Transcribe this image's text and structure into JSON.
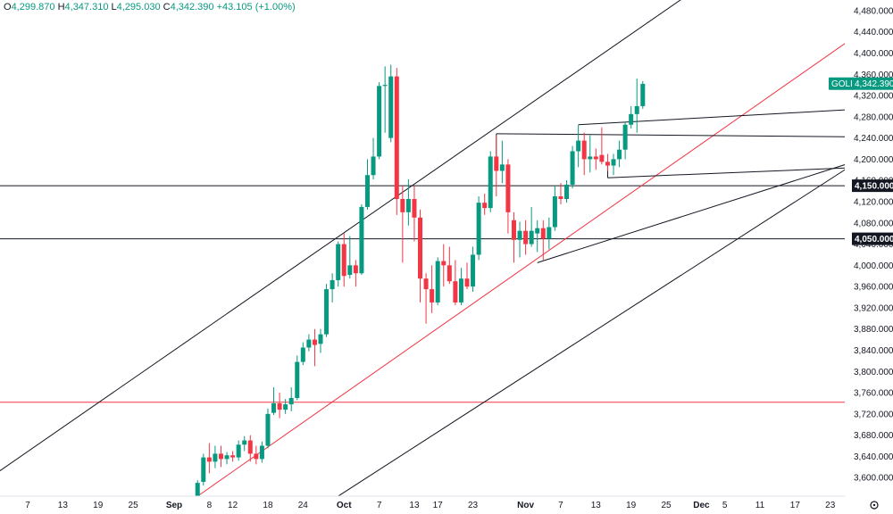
{
  "header": {
    "open_label": "O",
    "open": "4,299.870",
    "high_label": "H",
    "high": "4,347.310",
    "low_label": "L",
    "low": "4,295.030",
    "close_label": "C",
    "close": "4,342.390",
    "change": "+43.105 (+1.00%)"
  },
  "symbol_tag": {
    "name": "GOLD",
    "price": "4,342.390"
  },
  "colors": {
    "up": "#089981",
    "down": "#f23645",
    "line": "#131722",
    "red_line": "#f23645"
  },
  "chart_data": {
    "type": "candlestick",
    "symbol": "GOLD",
    "y_range": [
      3565,
      4500
    ],
    "y_ticks": [
      3600,
      3640,
      3680,
      3720,
      3760,
      3800,
      3840,
      3880,
      3920,
      3960,
      4000,
      4040,
      4080,
      4120,
      4160,
      4200,
      4240,
      4280,
      4320,
      4360,
      4400,
      4440,
      4480
    ],
    "y_tick_labels": [
      "3,600.000",
      "3,640.000",
      "3,680.000",
      "3,720.000",
      "3,760.000",
      "3,800.000",
      "3,840.000",
      "3,880.000",
      "3,920.000",
      "3,960.000",
      "4,000.000",
      "4,040.000",
      "4,080.000",
      "4,120.000",
      "4,160.000",
      "4,200.000",
      "4,240.000",
      "4,280.000",
      "4,320.000",
      "4,360.000",
      "4,400.000",
      "4,440.000",
      "4,480.000"
    ],
    "x_ticks": [
      {
        "label": "7",
        "day": 7
      },
      {
        "label": "13",
        "day": 13
      },
      {
        "label": "19",
        "day": 19
      },
      {
        "label": "25",
        "day": 25
      },
      {
        "label": "Sep",
        "day": 32,
        "month": true
      },
      {
        "label": "8",
        "day": 38
      },
      {
        "label": "12",
        "day": 42
      },
      {
        "label": "18",
        "day": 48
      },
      {
        "label": "24",
        "day": 54
      },
      {
        "label": "Oct",
        "day": 61,
        "month": true
      },
      {
        "label": "7",
        "day": 67
      },
      {
        "label": "13",
        "day": 73
      },
      {
        "label": "17",
        "day": 77
      },
      {
        "label": "23",
        "day": 83
      },
      {
        "label": "Nov",
        "day": 92,
        "month": true
      },
      {
        "label": "7",
        "day": 98
      },
      {
        "label": "13",
        "day": 104
      },
      {
        "label": "19",
        "day": 110
      },
      {
        "label": "25",
        "day": 116
      },
      {
        "label": "Dec",
        "day": 122,
        "month": true
      },
      {
        "label": "5",
        "day": 126
      },
      {
        "label": "11",
        "day": 132
      },
      {
        "label": "17",
        "day": 138
      },
      {
        "label": "23",
        "day": 144
      }
    ],
    "candles": [
      {
        "day": 36,
        "o": 3560,
        "h": 3595,
        "l": 3560,
        "c": 3590
      },
      {
        "day": 37,
        "o": 3592,
        "h": 3645,
        "l": 3585,
        "c": 3638
      },
      {
        "day": 38,
        "o": 3638,
        "h": 3665,
        "l": 3608,
        "c": 3630
      },
      {
        "day": 39,
        "o": 3630,
        "h": 3660,
        "l": 3618,
        "c": 3645
      },
      {
        "day": 40,
        "o": 3645,
        "h": 3660,
        "l": 3620,
        "c": 3635
      },
      {
        "day": 41,
        "o": 3635,
        "h": 3648,
        "l": 3625,
        "c": 3642
      },
      {
        "day": 42,
        "o": 3642,
        "h": 3650,
        "l": 3630,
        "c": 3638
      },
      {
        "day": 43,
        "o": 3638,
        "h": 3670,
        "l": 3632,
        "c": 3662
      },
      {
        "day": 44,
        "o": 3662,
        "h": 3678,
        "l": 3650,
        "c": 3670
      },
      {
        "day": 45,
        "o": 3670,
        "h": 3680,
        "l": 3630,
        "c": 3645
      },
      {
        "day": 46,
        "o": 3645,
        "h": 3660,
        "l": 3625,
        "c": 3635
      },
      {
        "day": 47,
        "o": 3635,
        "h": 3668,
        "l": 3628,
        "c": 3660
      },
      {
        "day": 48,
        "o": 3660,
        "h": 3730,
        "l": 3655,
        "c": 3720
      },
      {
        "day": 49,
        "o": 3722,
        "h": 3770,
        "l": 3718,
        "c": 3740
      },
      {
        "day": 50,
        "o": 3740,
        "h": 3760,
        "l": 3712,
        "c": 3728
      },
      {
        "day": 51,
        "o": 3728,
        "h": 3748,
        "l": 3720,
        "c": 3738
      },
      {
        "day": 52,
        "o": 3738,
        "h": 3770,
        "l": 3725,
        "c": 3750
      },
      {
        "day": 53,
        "o": 3750,
        "h": 3830,
        "l": 3746,
        "c": 3818
      },
      {
        "day": 54,
        "o": 3818,
        "h": 3855,
        "l": 3812,
        "c": 3845
      },
      {
        "day": 55,
        "o": 3845,
        "h": 3870,
        "l": 3838,
        "c": 3860
      },
      {
        "day": 56,
        "o": 3860,
        "h": 3880,
        "l": 3810,
        "c": 3850
      },
      {
        "day": 57,
        "o": 3852,
        "h": 3880,
        "l": 3835,
        "c": 3870
      },
      {
        "day": 58,
        "o": 3870,
        "h": 3965,
        "l": 3865,
        "c": 3955
      },
      {
        "day": 59,
        "o": 3955,
        "h": 3985,
        "l": 3930,
        "c": 3972
      },
      {
        "day": 60,
        "o": 3972,
        "h": 4045,
        "l": 3960,
        "c": 4040
      },
      {
        "day": 61,
        "o": 4040,
        "h": 4060,
        "l": 3960,
        "c": 3980
      },
      {
        "day": 62,
        "o": 3982,
        "h": 4055,
        "l": 3975,
        "c": 4000
      },
      {
        "day": 63,
        "o": 4000,
        "h": 4010,
        "l": 3960,
        "c": 3985
      },
      {
        "day": 64,
        "o": 3985,
        "h": 4115,
        "l": 3982,
        "c": 4110
      },
      {
        "day": 65,
        "o": 4110,
        "h": 4200,
        "l": 4105,
        "c": 4170
      },
      {
        "day": 66,
        "o": 4170,
        "h": 4240,
        "l": 4162,
        "c": 4205
      },
      {
        "day": 67,
        "o": 4205,
        "h": 4345,
        "l": 4200,
        "c": 4338
      },
      {
        "day": 68,
        "o": 4338,
        "h": 4375,
        "l": 4250,
        "c": 4340
      },
      {
        "day": 69,
        "o": 4240,
        "h": 4378,
        "l": 4232,
        "c": 4356
      },
      {
        "day": 70,
        "o": 4356,
        "h": 4372,
        "l": 4095,
        "c": 4125
      },
      {
        "day": 71,
        "o": 4125,
        "h": 4150,
        "l": 4005,
        "c": 4100
      },
      {
        "day": 72,
        "o": 4100,
        "h": 4162,
        "l": 4075,
        "c": 4125
      },
      {
        "day": 73,
        "o": 4125,
        "h": 4150,
        "l": 4045,
        "c": 4090
      },
      {
        "day": 74,
        "o": 4090,
        "h": 4105,
        "l": 3930,
        "c": 3975
      },
      {
        "day": 75,
        "o": 3975,
        "h": 3985,
        "l": 3890,
        "c": 3955
      },
      {
        "day": 76,
        "o": 3955,
        "h": 4000,
        "l": 3910,
        "c": 3930
      },
      {
        "day": 77,
        "o": 3930,
        "h": 4015,
        "l": 3925,
        "c": 4008
      },
      {
        "day": 78,
        "o": 4008,
        "h": 4040,
        "l": 3960,
        "c": 4000
      },
      {
        "day": 79,
        "o": 4000,
        "h": 4035,
        "l": 3965,
        "c": 3970
      },
      {
        "day": 80,
        "o": 3970,
        "h": 4010,
        "l": 3925,
        "c": 3930
      },
      {
        "day": 81,
        "o": 3930,
        "h": 3995,
        "l": 3925,
        "c": 3975
      },
      {
        "day": 82,
        "o": 3975,
        "h": 4005,
        "l": 3955,
        "c": 3960
      },
      {
        "day": 83,
        "o": 3960,
        "h": 4035,
        "l": 3950,
        "c": 4020
      },
      {
        "day": 84,
        "o": 4020,
        "h": 4130,
        "l": 4010,
        "c": 4118
      },
      {
        "day": 85,
        "o": 4118,
        "h": 4135,
        "l": 4095,
        "c": 4108
      },
      {
        "day": 86,
        "o": 4108,
        "h": 4215,
        "l": 4100,
        "c": 4205
      },
      {
        "day": 87,
        "o": 4205,
        "h": 4245,
        "l": 4130,
        "c": 4178
      },
      {
        "day": 88,
        "o": 4178,
        "h": 4235,
        "l": 4155,
        "c": 4190
      },
      {
        "day": 89,
        "o": 4190,
        "h": 4200,
        "l": 4060,
        "c": 4100
      },
      {
        "day": 90,
        "o": 4085,
        "h": 4100,
        "l": 4005,
        "c": 4048
      },
      {
        "day": 91,
        "o": 4048,
        "h": 4082,
        "l": 4015,
        "c": 4065
      },
      {
        "day": 92,
        "o": 4065,
        "h": 4085,
        "l": 4020,
        "c": 4040
      },
      {
        "day": 93,
        "o": 4040,
        "h": 4110,
        "l": 4035,
        "c": 4065
      },
      {
        "day": 94,
        "o": 4060,
        "h": 4085,
        "l": 4025,
        "c": 4070
      },
      {
        "day": 95,
        "o": 4070,
        "h": 4085,
        "l": 4010,
        "c": 4050
      },
      {
        "day": 96,
        "o": 4050,
        "h": 4090,
        "l": 4030,
        "c": 4072
      },
      {
        "day": 97,
        "o": 4072,
        "h": 4150,
        "l": 4065,
        "c": 4130
      },
      {
        "day": 98,
        "o": 4130,
        "h": 4155,
        "l": 4115,
        "c": 4125
      },
      {
        "day": 99,
        "o": 4125,
        "h": 4160,
        "l": 4118,
        "c": 4152
      },
      {
        "day": 100,
        "o": 4152,
        "h": 4225,
        "l": 4145,
        "c": 4215
      },
      {
        "day": 101,
        "o": 4215,
        "h": 4265,
        "l": 4185,
        "c": 4235
      },
      {
        "day": 102,
        "o": 4235,
        "h": 4250,
        "l": 4170,
        "c": 4200
      },
      {
        "day": 103,
        "o": 4200,
        "h": 4245,
        "l": 4175,
        "c": 4205
      },
      {
        "day": 104,
        "o": 4205,
        "h": 4220,
        "l": 4180,
        "c": 4200
      },
      {
        "day": 105,
        "o": 4208,
        "h": 4260,
        "l": 4190,
        "c": 4195
      },
      {
        "day": 106,
        "o": 4195,
        "h": 4210,
        "l": 4178,
        "c": 4188
      },
      {
        "day": 107,
        "o": 4188,
        "h": 4210,
        "l": 4170,
        "c": 4200
      },
      {
        "day": 108,
        "o": 4200,
        "h": 4235,
        "l": 4185,
        "c": 4218
      },
      {
        "day": 109,
        "o": 4218,
        "h": 4270,
        "l": 4200,
        "c": 4265
      },
      {
        "day": 110,
        "o": 4265,
        "h": 4300,
        "l": 4258,
        "c": 4285
      },
      {
        "day": 111,
        "o": 4285,
        "h": 4352,
        "l": 4250,
        "c": 4300
      },
      {
        "day": 112,
        "o": 4300,
        "h": 4347,
        "l": 4295,
        "c": 4342
      }
    ],
    "horizontal_levels": [
      {
        "value": 4150,
        "label": "4,150.000",
        "color": "#131722"
      },
      {
        "value": 4050,
        "label": "4,050.000",
        "color": "#131722"
      },
      {
        "value": 3742,
        "color": "#f23645"
      }
    ],
    "trend_lines": [
      {
        "from": [
          -4,
          3565
        ],
        "to": [
          123,
          4535
        ],
        "color": "#131722"
      },
      {
        "from": [
          36,
          3565
        ],
        "to": [
          150,
          4445
        ],
        "color": "#f23645"
      },
      {
        "from": [
          60,
          3565
        ],
        "to": [
          150,
          4205
        ],
        "color": "#131722"
      },
      {
        "from": [
          94,
          4005
        ],
        "to": [
          150,
          4202
        ],
        "color": "#131722"
      },
      {
        "from": [
          87,
          4248
        ],
        "to": [
          150,
          4242
        ],
        "color": "#131722"
      },
      {
        "from": [
          87,
          4248
        ],
        "to": [
          87,
          4200
        ],
        "color": "#131722"
      },
      {
        "from": [
          101,
          4265
        ],
        "to": [
          150,
          4295
        ],
        "color": "#131722"
      },
      {
        "from": [
          106,
          4165
        ],
        "to": [
          150,
          4185
        ],
        "color": "#131722"
      },
      {
        "from": [
          106,
          4165
        ],
        "to": [
          106,
          4195
        ],
        "color": "#131722"
      }
    ]
  }
}
